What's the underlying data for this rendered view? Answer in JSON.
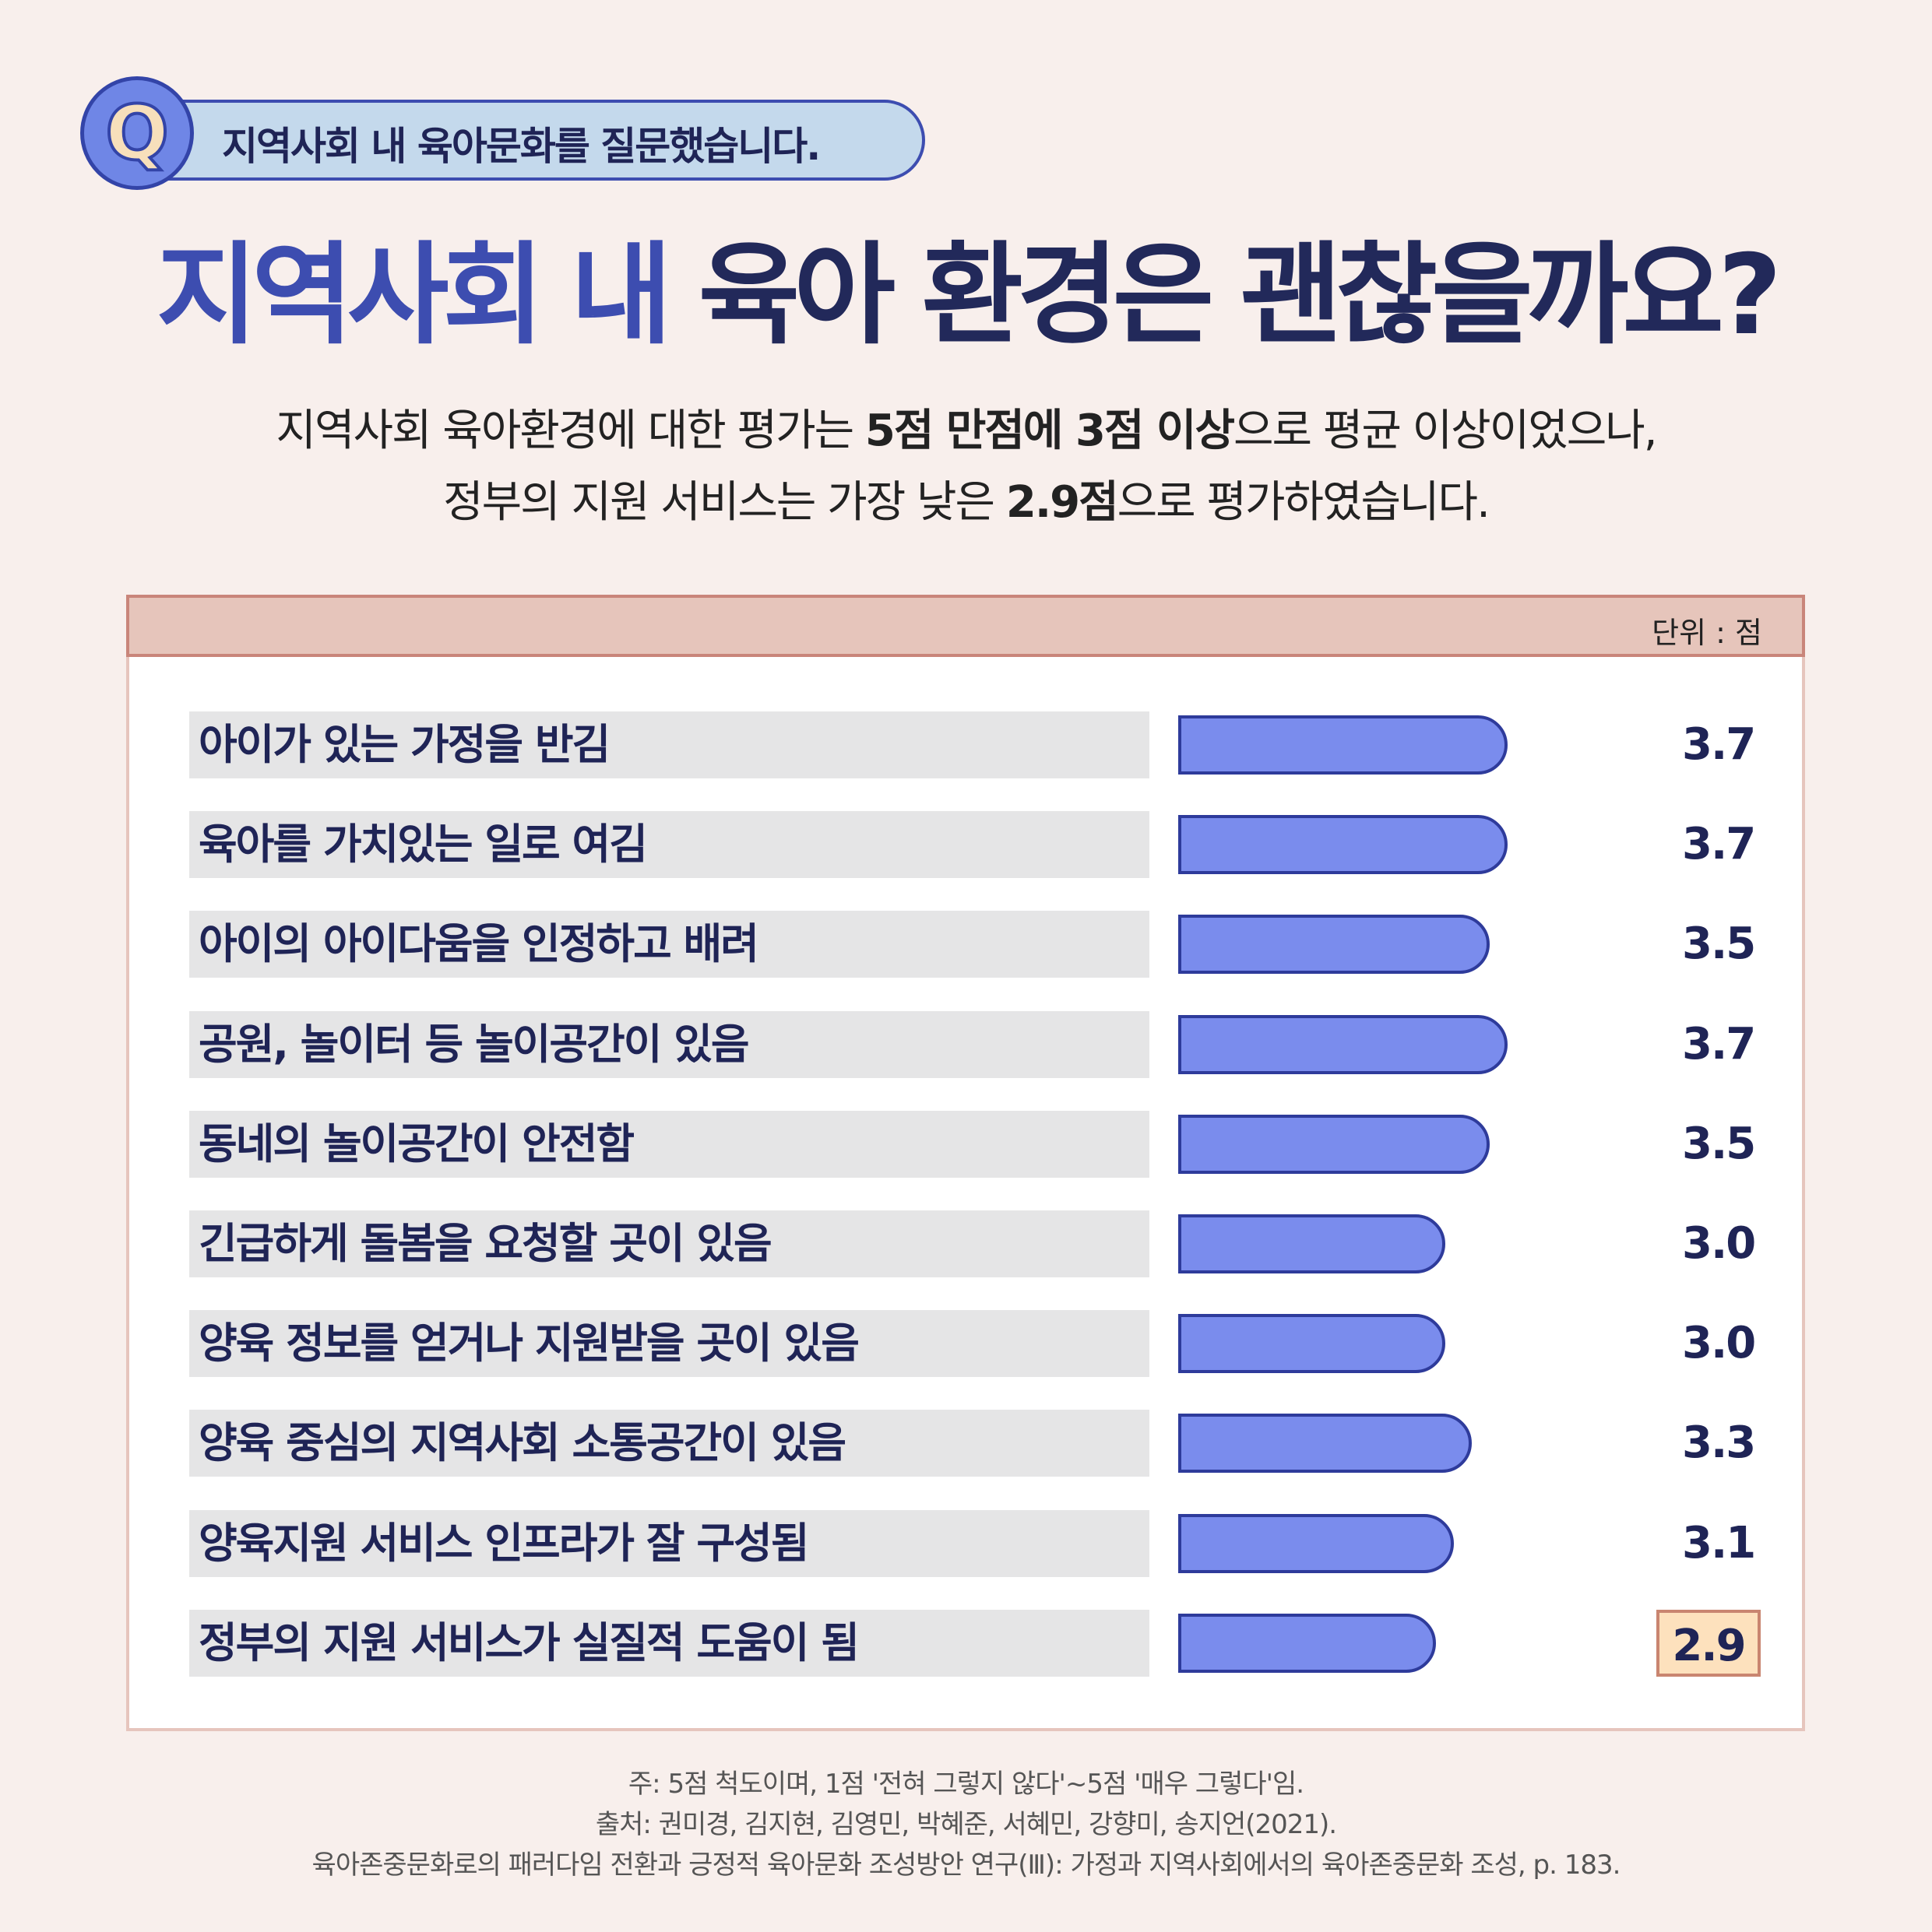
{
  "question": {
    "badge": "Q",
    "text": "지역사회 내 육아문화를 질문했습니다."
  },
  "title": {
    "part1": "지역사회 내",
    "part2": "육아 환경은 괜찮을까요?"
  },
  "subtitle": {
    "line1_a": "지역사회 육아환경에 대한 평가는 ",
    "line1_b": "5점 만점에 3점 이상",
    "line1_c": "으로 평균 이상이었으나,",
    "line2_a": "정부의 지원 서비스는 가장 낮은 ",
    "line2_b": "2.9점",
    "line2_c": "으로 평가하였습니다."
  },
  "unit": "단위 : 점",
  "chart_data": {
    "type": "bar",
    "orientation": "horizontal",
    "categories": [
      "아이가 있는 가정을 반김",
      "육아를 가치있는 일로 여김",
      "아이의 아이다움을 인정하고 배려",
      "공원, 놀이터 등 놀이공간이 있음",
      "동네의 놀이공간이 안전함",
      "긴급하게 돌봄을 요청할 곳이 있음",
      "양육 정보를 얻거나 지원받을 곳이 있음",
      "양육 중심의 지역사회 소통공간이 있음",
      "양육지원 서비스 인프라가 잘 구성됨",
      "정부의 지원 서비스가 실질적 도움이 됨"
    ],
    "values": [
      3.7,
      3.7,
      3.5,
      3.7,
      3.5,
      3.0,
      3.0,
      3.3,
      3.1,
      2.9
    ],
    "value_labels": [
      "3.7",
      "3.7",
      "3.5",
      "3.7",
      "3.5",
      "3.0",
      "3.0",
      "3.3",
      "3.1",
      "2.9"
    ],
    "highlight_index": 9,
    "bar_color": "#7a8ced",
    "bar_border_color": "#2e3b9b",
    "highlight_color": "#fde1bd"
  },
  "notes": [
    "주: 5점 척도이며, 1점 '전혀 그렇지 않다'~5점 '매우 그렇다'임.",
    "출처: 권미경, 김지현, 김영민, 박혜준, 서혜민, 강향미, 송지언(2021).",
    "육아존중문화로의 패러다임 전환과 긍정적 육아문화 조성방안 연구(Ⅲ): 가정과 지역사회에서의 육아존중문화 조성, p. 183."
  ]
}
